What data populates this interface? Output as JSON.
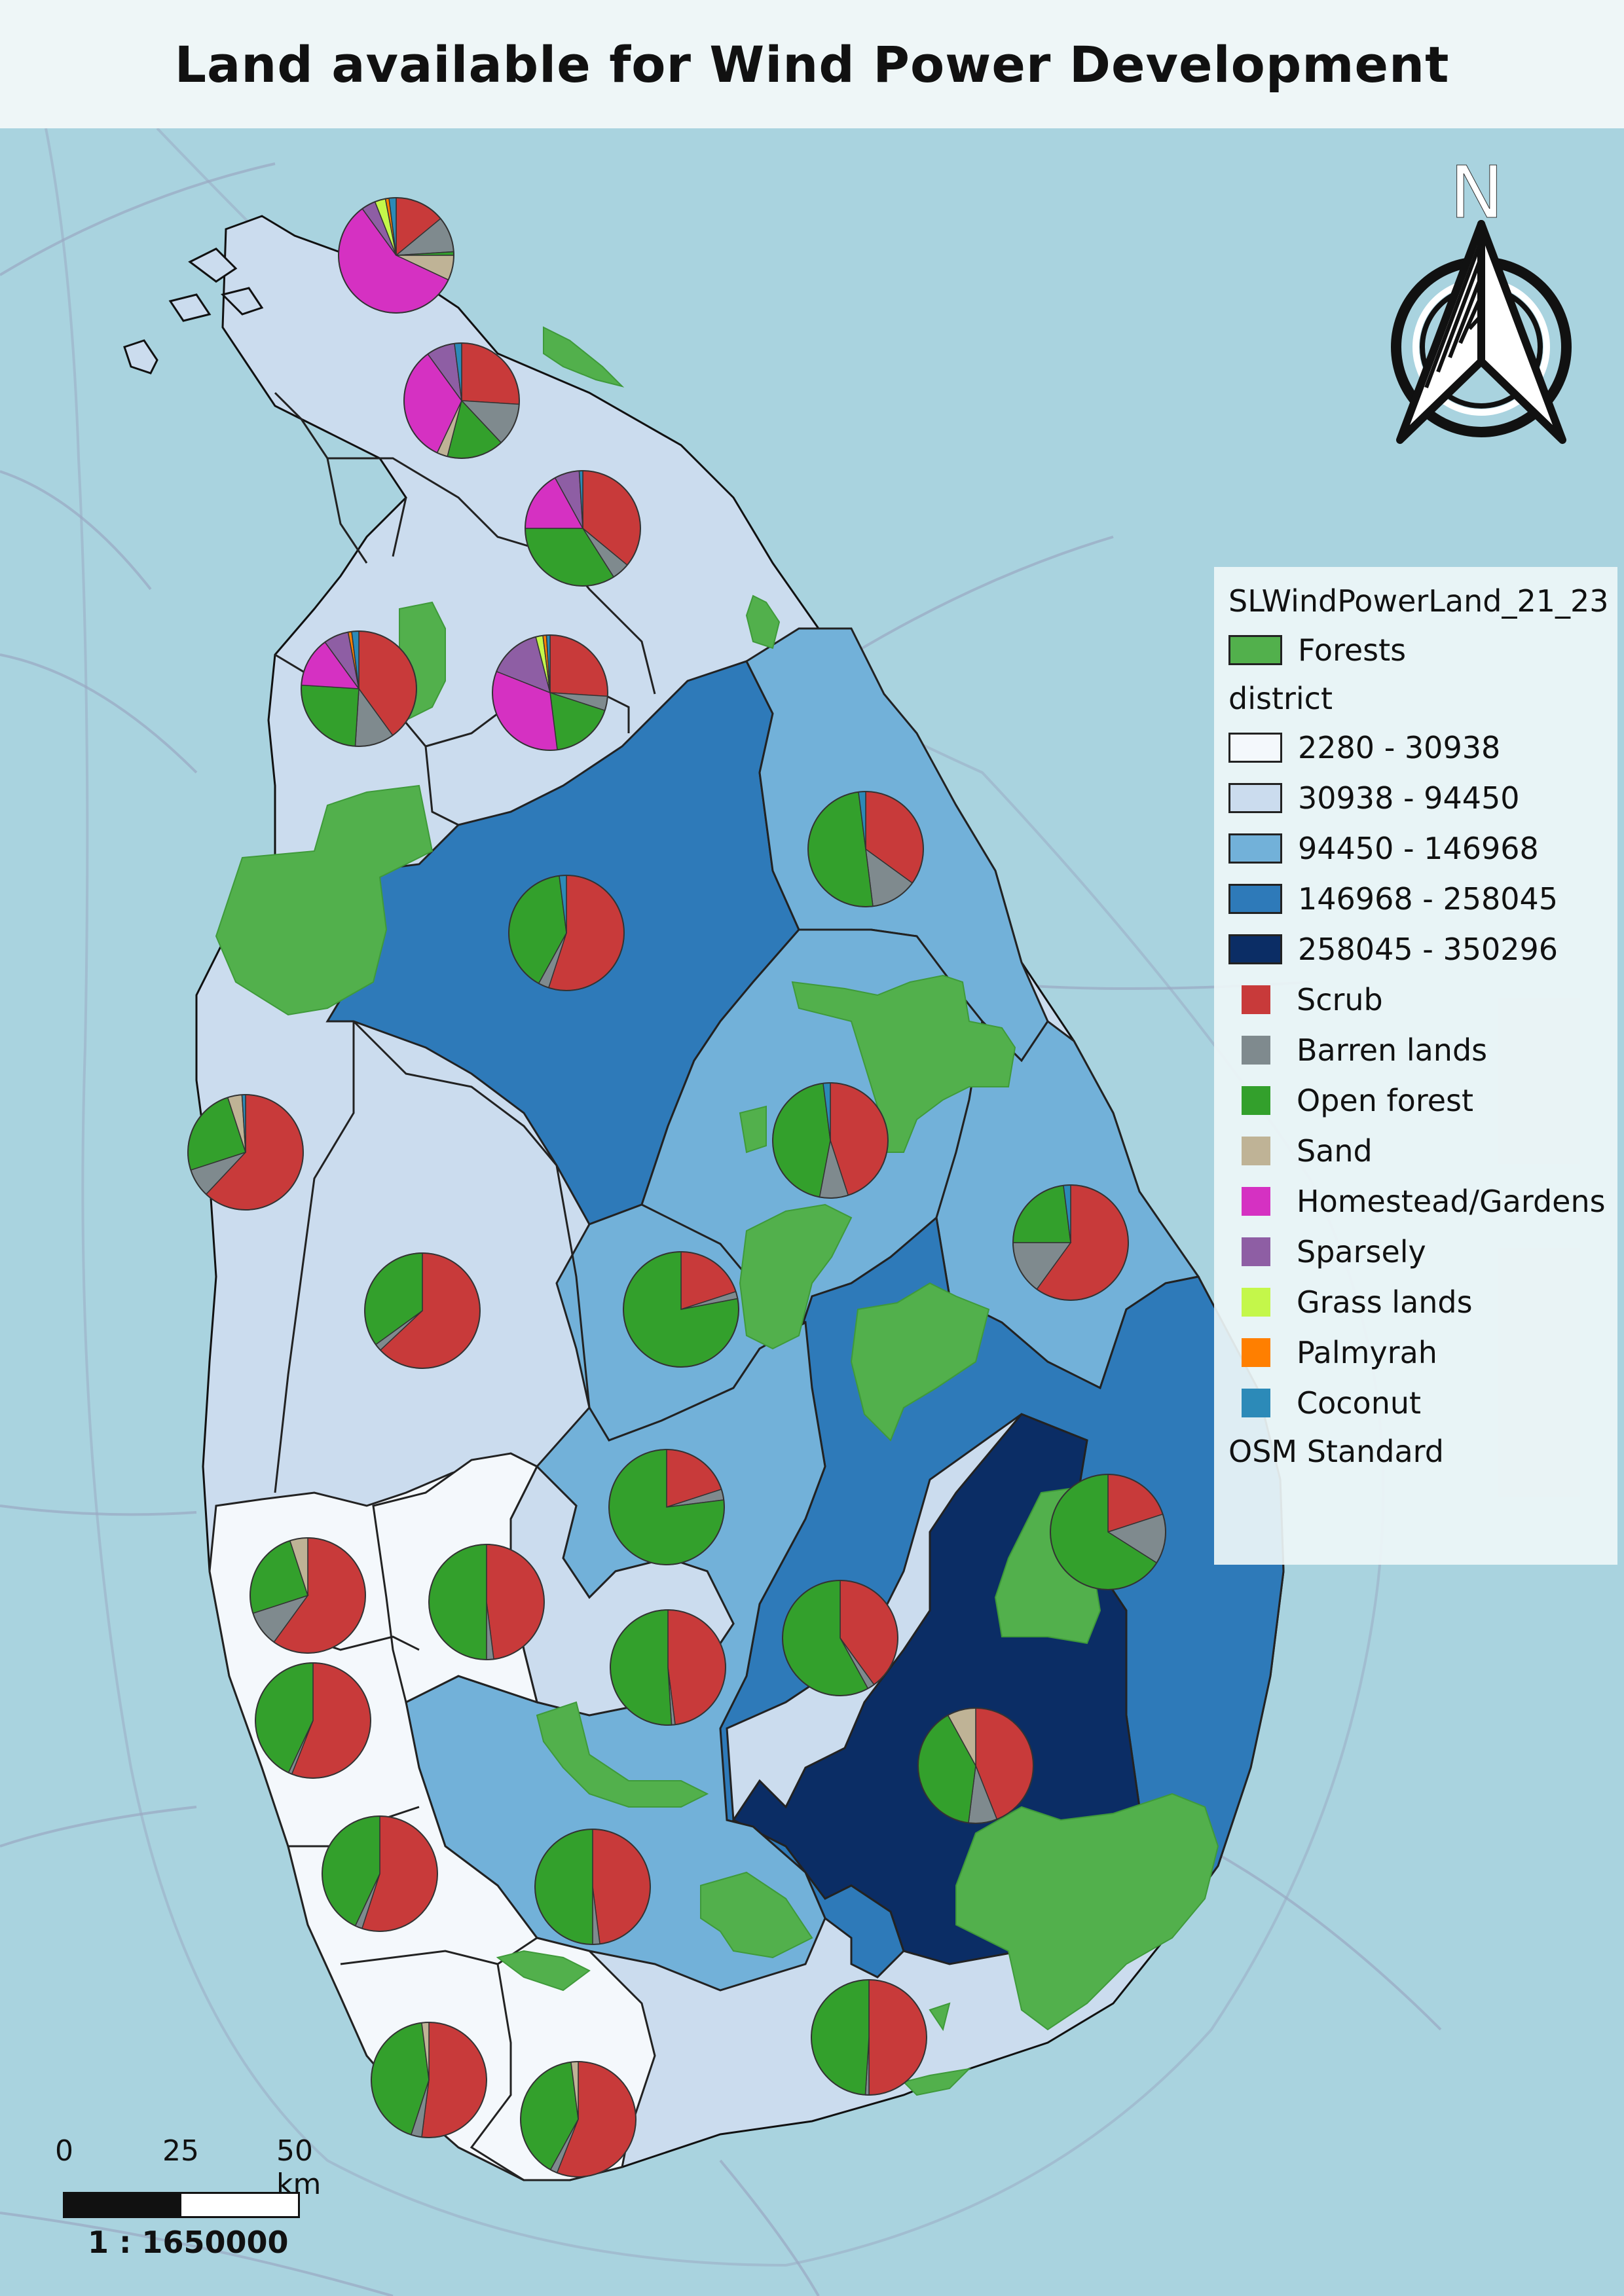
{
  "title": "Land available for Wind Power Development",
  "colors": {
    "sea": "#a9d3df",
    "forest": "#52b04c",
    "class_1": "#f4f8fc",
    "class_2": "#cbdcee",
    "class_3": "#72b1d9",
    "class_4": "#2e7ab9",
    "class_5": "#0b2d65",
    "scrub": "#c83a3a",
    "barren": "#7f8a8e",
    "open_forest": "#33a02c",
    "sand": "#bfb396",
    "homestead": "#d531c2",
    "sparsely": "#8e5ea4",
    "grass": "#c4f74a",
    "palmyrah": "#ff7f00",
    "coconut": "#2c8ab8"
  },
  "legend": {
    "layer_title": "SLWindPowerLand_21_23",
    "forest_label": "Forests",
    "district_title": "district",
    "classes": [
      {
        "label": "2280 - 30938",
        "color": "#f4f8fc"
      },
      {
        "label": "30938 - 94450",
        "color": "#cbdcee"
      },
      {
        "label": "94450 - 146968",
        "color": "#72b1d9"
      },
      {
        "label": "146968 - 258045",
        "color": "#2e7ab9"
      },
      {
        "label": "258045 - 350296",
        "color": "#0b2d65"
      }
    ],
    "land_uses": [
      {
        "label": "Scrub",
        "color": "#c83a3a"
      },
      {
        "label": "Barren lands",
        "color": "#7f8a8e"
      },
      {
        "label": "Open forest",
        "color": "#33a02c"
      },
      {
        "label": "Sand",
        "color": "#bfb396"
      },
      {
        "label": "Homestead/Gardens",
        "color": "#d531c2"
      },
      {
        "label": "Sparsely",
        "color": "#8e5ea4"
      },
      {
        "label": "Grass lands",
        "color": "#c4f74a"
      },
      {
        "label": "Palmyrah",
        "color": "#ff7f00"
      },
      {
        "label": "Coconut",
        "color": "#2c8ab8"
      }
    ],
    "basemap": "OSM Standard"
  },
  "north_label": "N",
  "scale": {
    "ticks": [
      "0",
      "25",
      "50 km"
    ],
    "ratio": "1 : 1650000"
  },
  "pie_order": [
    "Scrub",
    "Barren lands",
    "Open forest",
    "Sand",
    "Homestead/Gardens",
    "Sparsely",
    "Grass lands",
    "Palmyrah",
    "Coconut"
  ],
  "pie_charts": [
    {
      "shares": [
        14,
        10,
        1,
        7,
        58,
        4,
        3,
        1,
        2
      ]
    },
    {
      "shares": [
        26,
        12,
        16,
        3,
        33,
        8,
        0,
        0,
        2
      ]
    },
    {
      "shares": [
        36,
        5,
        34,
        0,
        17,
        7,
        0,
        0,
        1
      ]
    },
    {
      "shares": [
        40,
        11,
        25,
        0,
        14,
        7,
        0,
        1,
        2
      ]
    },
    {
      "shares": [
        26,
        4,
        18,
        0,
        33,
        15,
        2,
        1,
        1
      ]
    },
    {
      "shares": [
        35,
        13,
        50,
        0,
        0,
        0,
        0,
        0,
        2
      ]
    },
    {
      "shares": [
        55,
        3,
        40,
        0,
        0,
        0,
        0,
        0,
        2
      ]
    },
    {
      "shares": [
        62,
        8,
        25,
        4,
        0,
        0,
        0,
        0,
        1
      ]
    },
    {
      "shares": [
        45,
        8,
        45,
        0,
        0,
        0,
        0,
        0,
        2
      ]
    },
    {
      "shares": [
        60,
        15,
        23,
        0,
        0,
        0,
        0,
        0,
        2
      ]
    },
    {
      "shares": [
        63,
        2,
        35,
        0,
        0,
        0,
        0,
        0,
        0
      ]
    },
    {
      "shares": [
        20,
        2,
        78,
        0,
        0,
        0,
        0,
        0,
        0
      ]
    },
    {
      "shares": [
        20,
        3,
        77,
        0,
        0,
        0,
        0,
        0,
        0
      ]
    },
    {
      "shares": [
        20,
        14,
        66,
        0,
        0,
        0,
        0,
        0,
        0
      ]
    },
    {
      "shares": [
        60,
        10,
        25,
        5,
        0,
        0,
        0,
        0,
        0
      ]
    },
    {
      "shares": [
        48,
        2,
        50,
        0,
        0,
        0,
        0,
        0,
        0
      ]
    },
    {
      "shares": [
        40,
        2,
        58,
        0,
        0,
        0,
        0,
        0,
        0
      ]
    },
    {
      "shares": [
        48,
        1,
        51,
        0,
        0,
        0,
        0,
        0,
        0
      ]
    },
    {
      "shares": [
        56,
        1,
        43,
        0,
        0,
        0,
        0,
        0,
        0
      ]
    },
    {
      "shares": [
        44,
        8,
        40,
        8,
        0,
        0,
        0,
        0,
        0
      ]
    },
    {
      "shares": [
        55,
        2,
        43,
        0,
        0,
        0,
        0,
        0,
        0
      ]
    },
    {
      "shares": [
        48,
        2,
        50,
        0,
        0,
        0,
        0,
        0,
        0
      ]
    },
    {
      "shares": [
        50,
        1,
        49,
        0,
        0,
        0,
        0,
        0,
        0
      ]
    },
    {
      "shares": [
        52,
        3,
        43,
        2,
        0,
        0,
        0,
        0,
        0
      ]
    },
    {
      "shares": [
        56,
        2,
        40,
        2,
        0,
        0,
        0,
        0,
        0
      ]
    }
  ]
}
